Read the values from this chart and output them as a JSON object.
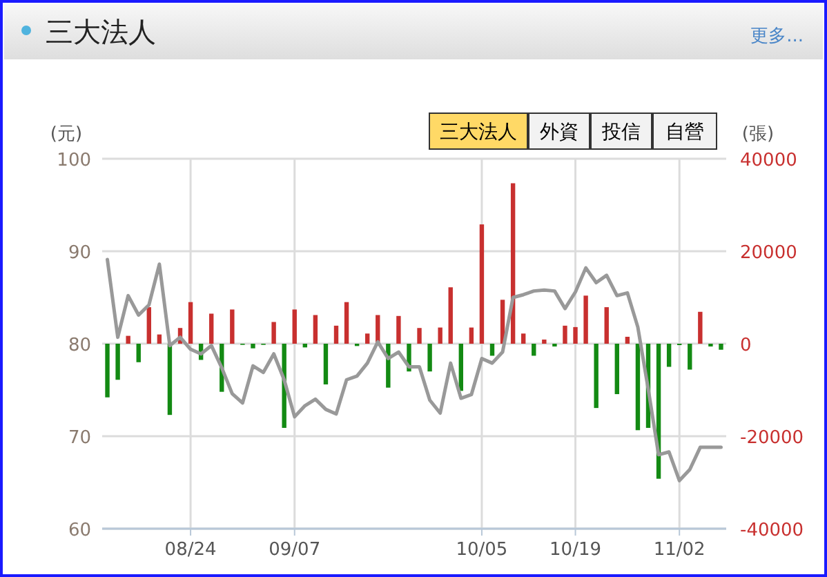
{
  "chart_data": {
    "type": "bar",
    "title": "三大法人",
    "ylabel": "(元)",
    "y2label": "(張)",
    "annotations": [
      "更多...",
      "三大法人",
      "外資",
      "投信",
      "自營"
    ],
    "categories": [
      null,
      null,
      null,
      null,
      null,
      null,
      null,
      null,
      "08/24",
      null,
      null,
      null,
      null,
      null,
      null,
      null,
      null,
      null,
      "09/07",
      null,
      null,
      null,
      null,
      null,
      null,
      null,
      null,
      null,
      null,
      null,
      null,
      null,
      null,
      null,
      null,
      null,
      "10/05",
      null,
      null,
      null,
      null,
      null,
      null,
      null,
      null,
      "10/19",
      null,
      null,
      null,
      null,
      null,
      null,
      null,
      null,
      null,
      "11/02",
      null,
      null,
      null,
      null
    ],
    "series": [
      {
        "axis": "y2",
        "values": [
          -11600,
          -7800,
          1700,
          -4000,
          7900,
          2000,
          -15400,
          3400,
          9000,
          -3500,
          6500,
          -10400,
          7400,
          -200,
          -1000,
          -200,
          4700,
          -18200,
          7400,
          -800,
          6200,
          -8800,
          3900,
          9000,
          -500,
          2200,
          6200,
          -9500,
          6000,
          -6000,
          3400,
          -6000,
          3500,
          12200,
          -10200,
          3500,
          25800,
          -2600,
          9500,
          34700,
          2200,
          -2600,
          900,
          -600,
          3900,
          3600,
          10400,
          -13900,
          7900,
          -10900,
          1500,
          -18700,
          -18200,
          -29200,
          -5000,
          -300,
          -5600,
          6900,
          -600,
          -1300
        ],
        "colors": [
          "#138a13",
          "#138a13",
          "#c8302f",
          "#138a13",
          "#c8302f",
          "#c8302f",
          "#138a13",
          "#c8302f",
          "#c8302f",
          "#138a13",
          "#c8302f",
          "#138a13",
          "#c8302f",
          "#138a13",
          "#138a13",
          "#138a13",
          "#c8302f",
          "#138a13",
          "#c8302f",
          "#138a13",
          "#c8302f",
          "#138a13",
          "#c8302f",
          "#c8302f",
          "#138a13",
          "#c8302f",
          "#c8302f",
          "#138a13",
          "#c8302f",
          "#138a13",
          "#c8302f",
          "#138a13",
          "#c8302f",
          "#c8302f",
          "#138a13",
          "#c8302f",
          "#c8302f",
          "#138a13",
          "#c8302f",
          "#c8302f",
          "#c8302f",
          "#138a13",
          "#c8302f",
          "#138a13",
          "#c8302f",
          "#c8302f",
          "#c8302f",
          "#138a13",
          "#c8302f",
          "#138a13",
          "#c8302f",
          "#138a13",
          "#138a13",
          "#138a13",
          "#138a13",
          "#138a13",
          "#138a13",
          "#c8302f",
          "#138a13",
          "#138a13"
        ]
      },
      {
        "type": "line",
        "axis": "y",
        "color": "#999999",
        "values": [
          89.1,
          80.7,
          85.2,
          83.1,
          84.2,
          88.6,
          79.8,
          80.7,
          79.4,
          78.9,
          79.8,
          77.4,
          74.6,
          73.6,
          77.6,
          76.9,
          78.9,
          76.1,
          72.1,
          73.3,
          74.0,
          72.9,
          72.4,
          76.1,
          76.5,
          77.9,
          80.2,
          78.4,
          79.1,
          77.5,
          77.5,
          73.9,
          72.5,
          77.9,
          74.1,
          74.5,
          78.4,
          77.9,
          79.1,
          85.0,
          85.3,
          85.7,
          85.8,
          85.7,
          83.8,
          85.6,
          88.2,
          86.6,
          87.4,
          85.2,
          85.5,
          81.8,
          75.1,
          68.0,
          68.3,
          65.2,
          66.4,
          68.8,
          68.8,
          68.8
        ]
      }
    ],
    "ylim": [
      60,
      100
    ],
    "yticks": [
      60,
      70,
      80,
      90,
      100
    ],
    "y2lim": [
      -40000,
      40000
    ],
    "y2ticks": [
      -40000,
      -20000,
      0,
      20000,
      40000
    ],
    "grid": true
  }
}
